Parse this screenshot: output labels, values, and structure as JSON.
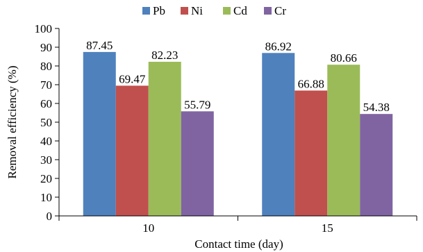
{
  "chart_data": {
    "type": "bar",
    "categories": [
      "10",
      "15"
    ],
    "series": [
      {
        "name": "Pb",
        "values": [
          87.45,
          86.92
        ],
        "labels": [
          "87.45",
          "86.92"
        ],
        "color": "#4F81BD"
      },
      {
        "name": "Ni",
        "values": [
          69.47,
          66.88
        ],
        "labels": [
          "69.47",
          "66.88"
        ],
        "color": "#C0504D"
      },
      {
        "name": "Cd",
        "values": [
          82.23,
          80.66
        ],
        "labels": [
          "82.23",
          "80.66"
        ],
        "color": "#9BBB59"
      },
      {
        "name": "Cr",
        "values": [
          55.79,
          54.38
        ],
        "labels": [
          "55.79",
          "54.38"
        ],
        "color": "#8064A2"
      }
    ],
    "xlabel": "Contact time (day)",
    "ylabel": "Removal efficiency (%)",
    "ylim": [
      0,
      100
    ],
    "yticks": [
      "0",
      "10",
      "20",
      "30",
      "40",
      "50",
      "60",
      "70",
      "80",
      "90",
      "100"
    ],
    "grid": false,
    "legend_position": "top"
  }
}
